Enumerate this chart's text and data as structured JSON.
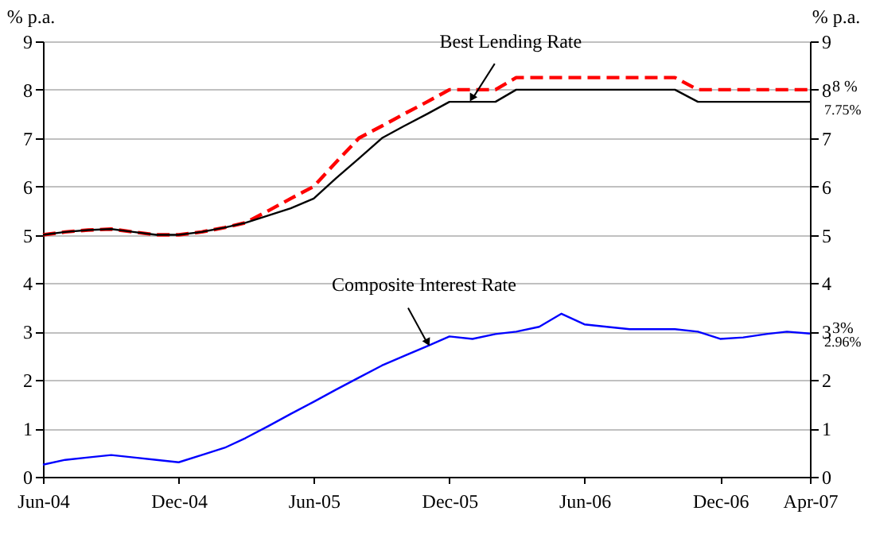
{
  "chart_data": {
    "type": "line",
    "x": [
      "2004-06",
      "2004-07",
      "2004-08",
      "2004-09",
      "2004-10",
      "2004-11",
      "2004-12",
      "2005-01",
      "2005-02",
      "2005-03",
      "2005-04",
      "2005-05",
      "2005-06",
      "2005-07",
      "2005-08",
      "2005-09",
      "2005-10",
      "2005-11",
      "2005-12",
      "2006-01",
      "2006-02",
      "2006-03",
      "2006-04",
      "2006-05",
      "2006-06",
      "2006-07",
      "2006-08",
      "2006-09",
      "2006-10",
      "2006-11",
      "2006-12",
      "2007-01",
      "2007-02",
      "2007-03",
      "2007-04"
    ],
    "series": [
      {
        "color": "#ff0000",
        "line_style": "dashed",
        "values": [
          5.0,
          5.06,
          5.1,
          5.12,
          5.06,
          5.0,
          5.0,
          5.06,
          5.15,
          5.25,
          5.5,
          5.75,
          6.0,
          6.5,
          7.0,
          7.25,
          7.5,
          7.75,
          8.0,
          8.0,
          8.0,
          8.25,
          8.25,
          8.25,
          8.25,
          8.25,
          8.25,
          8.25,
          8.25,
          8.0,
          8.0,
          8.0,
          8.0,
          8.0,
          8.0
        ]
      },
      {
        "color": "#000000",
        "line_style": "solid",
        "values": [
          5.0,
          5.06,
          5.1,
          5.12,
          5.06,
          5.0,
          5.0,
          5.06,
          5.15,
          5.25,
          5.4,
          5.55,
          5.75,
          6.17,
          6.58,
          7.0,
          7.25,
          7.5,
          7.75,
          7.75,
          7.75,
          8.0,
          8.0,
          8.0,
          8.0,
          8.0,
          8.0,
          8.0,
          8.0,
          7.75,
          7.75,
          7.75,
          7.75,
          7.75,
          7.75
        ]
      },
      {
        "color": "#0000ff",
        "line_style": "solid",
        "values": [
          0.25,
          0.35,
          0.4,
          0.45,
          0.4,
          0.35,
          0.3,
          0.45,
          0.6,
          0.8,
          1.05,
          1.3,
          1.55,
          1.8,
          2.05,
          2.3,
          2.5,
          2.7,
          2.9,
          2.85,
          2.95,
          3.0,
          3.1,
          3.37,
          3.15,
          3.1,
          3.05,
          3.05,
          3.05,
          3.0,
          2.85,
          2.88,
          2.95,
          3.0,
          2.96
        ]
      }
    ],
    "xlim": [
      "2004-06",
      "2007-04"
    ],
    "xticks": [
      {
        "value": "2004-06",
        "label": "Jun-04"
      },
      {
        "value": "2004-12",
        "label": "Dec-04"
      },
      {
        "value": "2005-06",
        "label": "Jun-05"
      },
      {
        "value": "2005-12",
        "label": "Dec-05"
      },
      {
        "value": "2006-06",
        "label": "Jun-06"
      },
      {
        "value": "2006-12",
        "label": "Dec-06"
      },
      {
        "value": "2007-04",
        "label": "Apr-07"
      }
    ],
    "ylim": [
      0,
      9
    ],
    "yticks": [
      0,
      1,
      2,
      3,
      4,
      5,
      6,
      7,
      8,
      9
    ],
    "y2lim": [
      0,
      9
    ],
    "y2ticks": [
      0,
      1,
      2,
      3,
      4,
      5,
      6,
      7,
      8,
      9
    ],
    "ylabel": "% p.a.",
    "y2label": "% p.a.",
    "grid": "y",
    "annotations": [
      {
        "text": "Best Lending Rate",
        "x": "2006-01",
        "y": 7.75
      },
      {
        "text": "Composite Interest Rate",
        "x": "2005-11",
        "y": 2.7
      },
      {
        "text": "8 %",
        "x": "2007-04",
        "y": 8.0
      },
      {
        "text": "7.75%",
        "x": "2007-04",
        "y": 7.75
      },
      {
        "text": "3%",
        "x": "2007-04",
        "y": 3.0
      },
      {
        "text": "2.96%",
        "x": "2007-04",
        "y": 2.96
      }
    ]
  }
}
